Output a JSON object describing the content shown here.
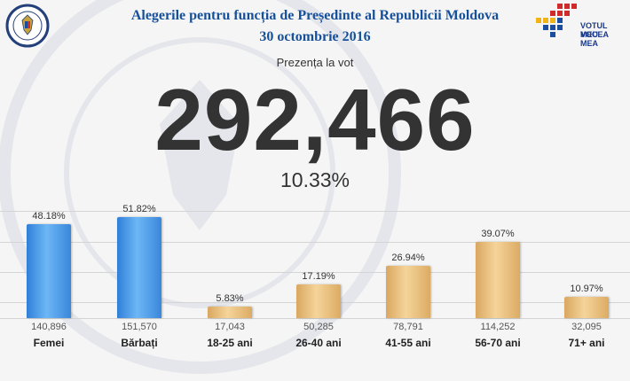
{
  "header": {
    "title": "Alegerile pentru funcția de Președinte al Republicii Moldova",
    "date": "30 octombrie 2016",
    "logo_text_line1": "VOTUL MEU",
    "logo_text_line2": "VOCEA MEA"
  },
  "summary": {
    "label": "Prezența la vot",
    "total": "292,466",
    "percent": "10.33%"
  },
  "colors": {
    "title": "#17509a",
    "gender_bar": "#4a9be6",
    "age_bar": "#efc382"
  },
  "chart_data": {
    "type": "bar",
    "categories": [
      "Femei",
      "Bărbați",
      "18-25 ani",
      "26-40 ani",
      "41-55 ani",
      "56-70 ani",
      "71+ ani"
    ],
    "values": [
      48.18,
      51.82,
      5.83,
      17.19,
      26.94,
      39.07,
      10.97
    ],
    "value_labels": [
      "48.18%",
      "51.82%",
      "5.83%",
      "17.19%",
      "26.94%",
      "39.07%",
      "10.97%"
    ],
    "counts": [
      "140,896",
      "151,570",
      "17,043",
      "50,285",
      "78,791",
      "114,252",
      "32,095"
    ],
    "groups": [
      "gender",
      "gender",
      "age",
      "age",
      "age",
      "age",
      "age"
    ],
    "ylim": [
      0,
      55
    ],
    "grid": true
  }
}
